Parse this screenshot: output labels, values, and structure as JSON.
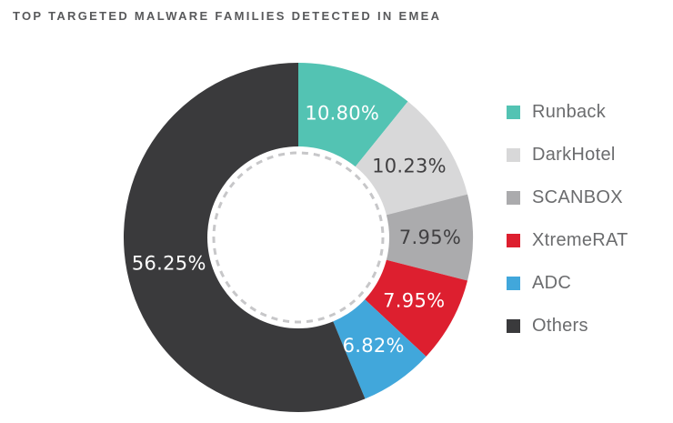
{
  "title": "TOP TARGETED MALWARE FAMILIES DETECTED IN EMEA",
  "colors": {
    "background": "#FFFFFF",
    "title_text": "#58595B",
    "legend_text": "#6B6C6E",
    "donut_hole": "#FFFFFF",
    "dashed_circle": "#C7C7C9"
  },
  "chart_data": {
    "type": "pie",
    "subtype": "donut",
    "title": "TOP TARGETED MALWARE FAMILIES DETECTED IN EMEA",
    "direction": "clockwise",
    "start_angle_deg": 0,
    "legend_position": "right",
    "categories": [
      "Runback",
      "DarkHotel",
      "SCANBOX",
      "XtremeRAT",
      "ADC",
      "Others"
    ],
    "values": [
      10.8,
      10.23,
      7.95,
      7.95,
      6.82,
      56.25
    ],
    "segments": [
      {
        "label": "Runback",
        "value": 10.8,
        "pct_label": "10.80%",
        "color": "#53C3B3",
        "label_color": "#FFFFFF"
      },
      {
        "label": "DarkHotel",
        "value": 10.23,
        "pct_label": "10.23%",
        "color": "#D8D8D9",
        "label_color": "#414042"
      },
      {
        "label": "SCANBOX",
        "value": 7.95,
        "pct_label": "7.95%",
        "color": "#ABABAD",
        "label_color": "#414042"
      },
      {
        "label": "XtremeRAT",
        "value": 7.95,
        "pct_label": "7.95%",
        "color": "#DD1F2F",
        "label_color": "#FFFFFF"
      },
      {
        "label": "ADC",
        "value": 6.82,
        "pct_label": "6.82%",
        "color": "#41A7DB",
        "label_color": "#FFFFFF"
      },
      {
        "label": "Others",
        "value": 56.25,
        "pct_label": "56.25%",
        "color": "#3A3A3C",
        "label_color": "#FFFFFF"
      }
    ]
  }
}
